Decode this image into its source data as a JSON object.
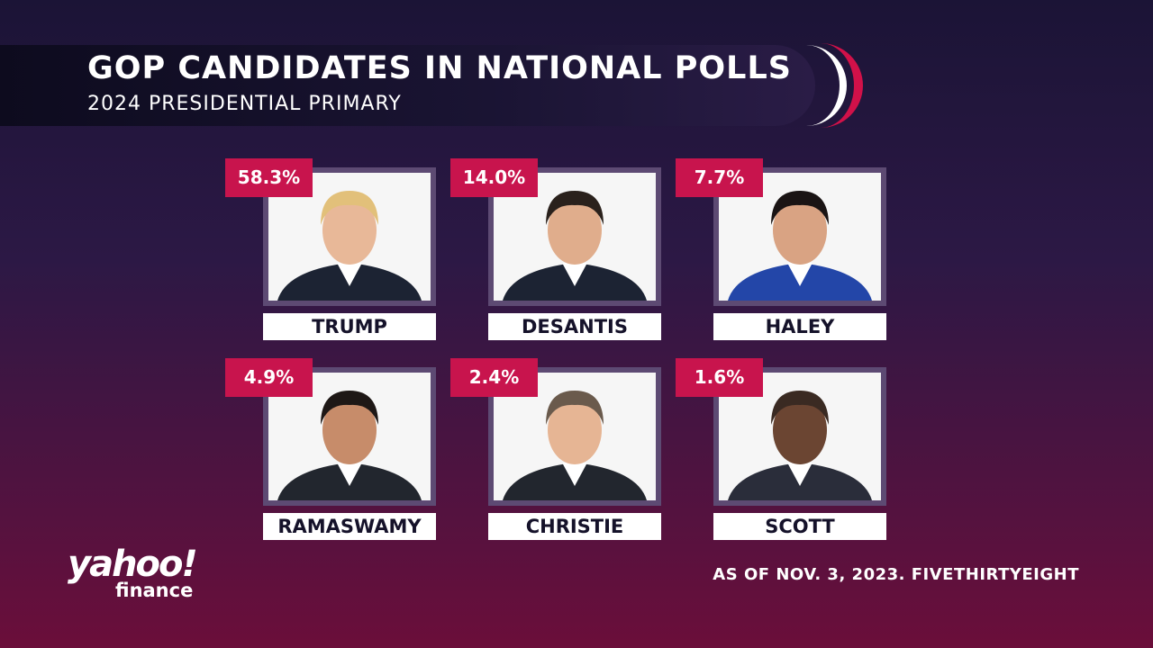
{
  "header": {
    "title": "GOP CANDIDATES IN NATIONAL POLLS",
    "subtitle": "2024 PRESIDENTIAL PRIMARY"
  },
  "candidates": [
    {
      "name": "TRUMP",
      "percent": "58.3%"
    },
    {
      "name": "DESANTIS",
      "percent": "14.0%"
    },
    {
      "name": "HALEY",
      "percent": "7.7%"
    },
    {
      "name": "RAMASWAMY",
      "percent": "4.9%"
    },
    {
      "name": "CHRISTIE",
      "percent": "2.4%"
    },
    {
      "name": "SCOTT",
      "percent": "1.6%"
    }
  ],
  "logo": {
    "brand": "yahoo!",
    "product": "finance"
  },
  "source": "AS OF NOV. 3, 2023. FIVETHIRTYEIGHT"
}
